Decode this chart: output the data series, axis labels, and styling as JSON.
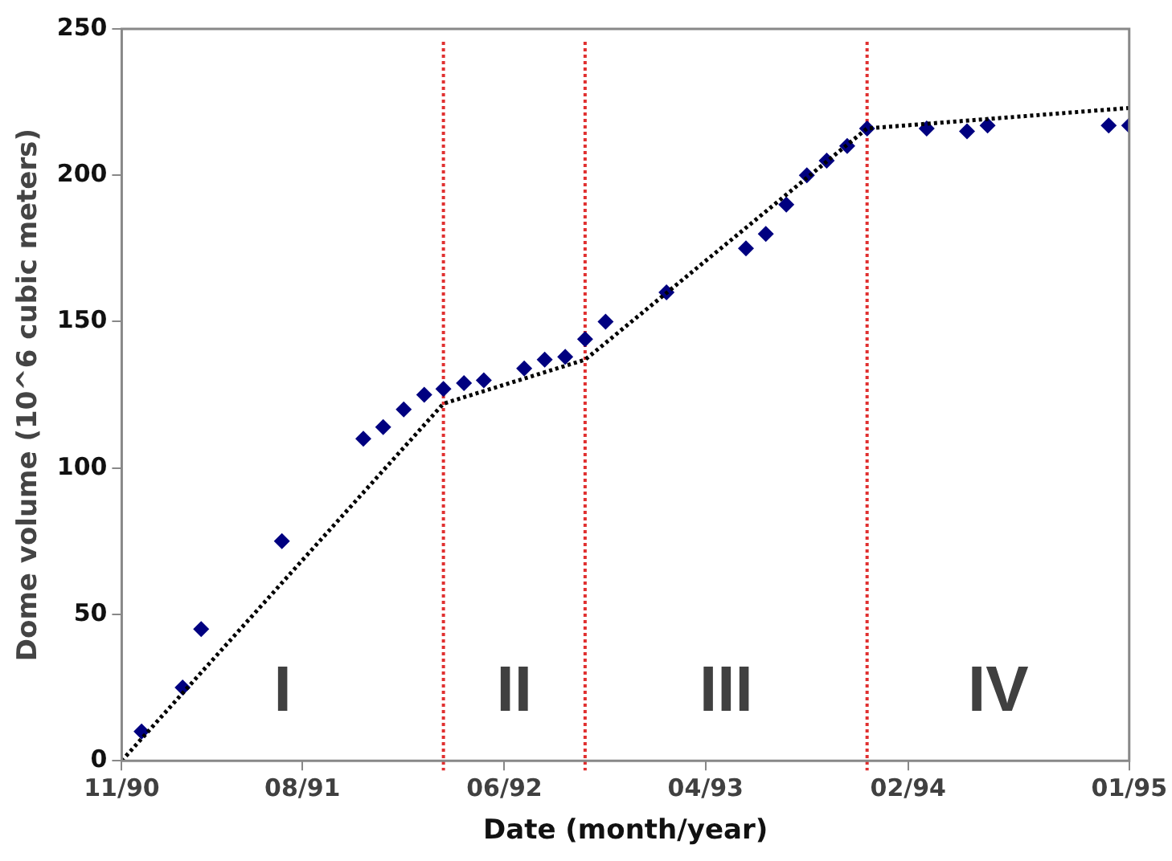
{
  "chart_data": {
    "type": "scatter",
    "xlabel": "Date (month/year)",
    "ylabel": "Dome volume (10^6 cubic meters)",
    "xlim": [
      "1990-11",
      "1995-01"
    ],
    "xticks": [
      {
        "value": "1990-11",
        "label": "11/90"
      },
      {
        "value": "1991-08",
        "label": "08/91"
      },
      {
        "value": "1992-06",
        "label": "06/92"
      },
      {
        "value": "1993-04",
        "label": "04/93"
      },
      {
        "value": "1994-02",
        "label": "02/94"
      },
      {
        "value": "1995-01",
        "label": "01/95"
      }
    ],
    "ylim": [
      0,
      250
    ],
    "yticks": [
      0,
      50,
      100,
      150,
      200,
      250
    ],
    "grid": false,
    "legend": false,
    "series": [
      {
        "color": "#000080",
        "marker": "diamond",
        "x": [
          "1990-12",
          "1991-02",
          "1991-03",
          "1991-07",
          "1991-11",
          "1991-12",
          "1992-01",
          "1992-02",
          "1992-03",
          "1992-04",
          "1992-05",
          "1992-07",
          "1992-08",
          "1992-09",
          "1992-10",
          "1992-11",
          "1993-02",
          "1993-06",
          "1993-07",
          "1993-08",
          "1993-09",
          "1993-10",
          "1993-11",
          "1993-12",
          "1994-03",
          "1994-05",
          "1994-06",
          "1994-12",
          "1995-01"
        ],
        "values": [
          10,
          25,
          45,
          75,
          110,
          114,
          120,
          125,
          127,
          129,
          130,
          134,
          137,
          138,
          144,
          150,
          160,
          175,
          180,
          190,
          200,
          205,
          210,
          216,
          216,
          215,
          217,
          217,
          217
        ]
      },
      {
        "type": "line",
        "color": "#000000",
        "marker": "none",
        "line_style": "dotted",
        "x": [
          "1990-11",
          "1992-03",
          "1992-10",
          "1993-12",
          "1995-01"
        ],
        "values": [
          0,
          122,
          137,
          216,
          223
        ]
      }
    ],
    "ref_lines": [
      {
        "axis": "x",
        "value": "1992-03",
        "color": "#e03030",
        "line_style": "dotted"
      },
      {
        "axis": "x",
        "value": "1992-10",
        "color": "#e03030",
        "line_style": "dotted"
      },
      {
        "axis": "x",
        "value": "1993-12",
        "color": "#e03030",
        "line_style": "dotted"
      }
    ],
    "annotations": [
      "I",
      "II",
      "III",
      "IV"
    ]
  }
}
